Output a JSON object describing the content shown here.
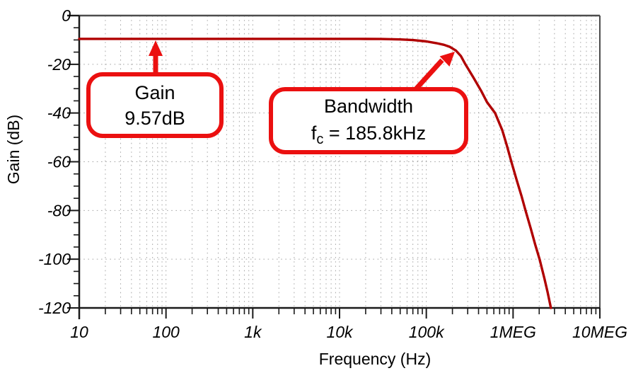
{
  "chart_data": {
    "type": "line",
    "title": "",
    "xlabel": "Frequency (Hz)",
    "ylabel": "Gain (dB)",
    "x_scale": "log",
    "xlim": [
      10,
      10000000
    ],
    "ylim": [
      -120,
      0
    ],
    "grid": "dotted",
    "legend": "none",
    "x_ticks": [
      {
        "v": 10,
        "label": "10"
      },
      {
        "v": 100,
        "label": "100"
      },
      {
        "v": 1000,
        "label": "1k"
      },
      {
        "v": 10000,
        "label": "10k"
      },
      {
        "v": 100000,
        "label": "100k"
      },
      {
        "v": 1000000,
        "label": "1MEG"
      },
      {
        "v": 10000000,
        "label": "10MEG"
      }
    ],
    "y_ticks": [
      {
        "v": 0,
        "label": "0"
      },
      {
        "v": -20,
        "label": "-20"
      },
      {
        "v": -40,
        "label": "-40"
      },
      {
        "v": -60,
        "label": "-60"
      },
      {
        "v": -80,
        "label": "-80"
      },
      {
        "v": -100,
        "label": "-100"
      },
      {
        "v": -120,
        "label": "-120"
      }
    ],
    "y_minor_step": 5,
    "colors": {
      "curve": "#B00000",
      "annotation_red": "#EB1010",
      "grid_dot": "#A6A6A6",
      "axis_dark": "#1A1A1A",
      "border_gray": "#4D4D4D"
    },
    "series": [
      {
        "name": "gain-response",
        "color": "#B00000",
        "points": [
          [
            10,
            -9.57
          ],
          [
            1000,
            -9.57
          ],
          [
            10000,
            -9.57
          ],
          [
            20000,
            -9.58
          ],
          [
            30000,
            -9.62
          ],
          [
            50000,
            -9.78
          ],
          [
            70000,
            -10.05
          ],
          [
            100000,
            -10.6
          ],
          [
            130000,
            -11.3
          ],
          [
            160000,
            -12.0
          ],
          [
            185800,
            -12.8
          ],
          [
            220000,
            -14.4
          ],
          [
            250000,
            -16.6
          ],
          [
            282000,
            -20.0
          ],
          [
            350000,
            -25.5
          ],
          [
            430000,
            -31.0
          ],
          [
            500000,
            -35.5
          ],
          [
            620000,
            -40.0
          ],
          [
            750000,
            -47.0
          ],
          [
            850000,
            -53.5
          ],
          [
            955000,
            -60.0
          ],
          [
            1100000,
            -67.5
          ],
          [
            1250000,
            -74.0
          ],
          [
            1390000,
            -80.0
          ],
          [
            1600000,
            -87.5
          ],
          [
            1800000,
            -94.0
          ],
          [
            2020000,
            -100.0
          ],
          [
            2300000,
            -108.0
          ],
          [
            2500000,
            -113.5
          ],
          [
            2730000,
            -120.0
          ]
        ]
      }
    ],
    "annotations": [
      {
        "id": "gain-callout",
        "line1": "Gain",
        "line2": "9.57dB",
        "gain_db_value": "9.57dB"
      },
      {
        "id": "bandwidth-callout",
        "line1": "Bandwidth",
        "line2_base": "f",
        "line2_sub": "c",
        "line2_rest": " = 185.8kHz",
        "cutoff_value": "185.8kHz"
      }
    ]
  }
}
